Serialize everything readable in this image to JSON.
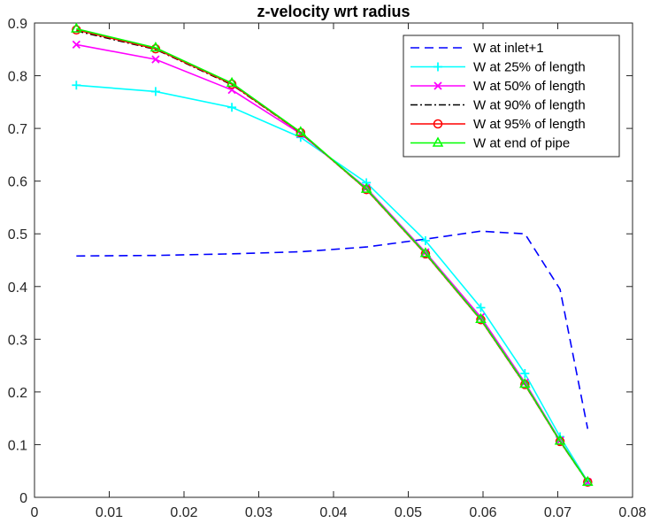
{
  "chart_data": {
    "type": "line",
    "title": "z-velocity wrt radius",
    "xlabel": "",
    "ylabel": "",
    "xlim": [
      0,
      0.08
    ],
    "ylim": [
      0,
      0.9
    ],
    "xticks": [
      0,
      0.01,
      0.02,
      0.03,
      0.04,
      0.05,
      0.06,
      0.07,
      0.08
    ],
    "xtick_labels": [
      "0",
      "0.01",
      "0.02",
      "0.03",
      "0.04",
      "0.05",
      "0.06",
      "0.07",
      "0.08"
    ],
    "yticks": [
      0,
      0.1,
      0.2,
      0.3,
      0.4,
      0.5,
      0.6,
      0.7,
      0.8,
      0.9
    ],
    "ytick_labels": [
      "0",
      "0.1",
      "0.2",
      "0.3",
      "0.4",
      "0.5",
      "0.6",
      "0.7",
      "0.8",
      "0.9"
    ],
    "grid": false,
    "legend_position": "top-right",
    "series": [
      {
        "name": "W at inlet+1",
        "color": "#0000ff",
        "line_style": "dashed",
        "marker": "none",
        "x": [
          0.0056,
          0.0162,
          0.0264,
          0.0356,
          0.0444,
          0.0523,
          0.0597,
          0.0656,
          0.0703,
          0.074
        ],
        "y": [
          0.458,
          0.459,
          0.462,
          0.466,
          0.475,
          0.49,
          0.505,
          0.5,
          0.395,
          0.13
        ]
      },
      {
        "name": "W at 25% of length",
        "color": "#00ffff",
        "line_style": "solid",
        "marker": "plus",
        "x": [
          0.0056,
          0.0162,
          0.0264,
          0.0356,
          0.0444,
          0.0523,
          0.0597,
          0.0656,
          0.0703,
          0.074
        ],
        "y": [
          0.782,
          0.77,
          0.74,
          0.683,
          0.597,
          0.487,
          0.36,
          0.235,
          0.115,
          0.03
        ]
      },
      {
        "name": "W at 50% of length",
        "color": "#ff00ff",
        "line_style": "solid",
        "marker": "x",
        "x": [
          0.0056,
          0.0162,
          0.0264,
          0.0356,
          0.0444,
          0.0523,
          0.0597,
          0.0656,
          0.0703,
          0.074
        ],
        "y": [
          0.859,
          0.831,
          0.773,
          0.69,
          0.587,
          0.465,
          0.342,
          0.218,
          0.108,
          0.029
        ]
      },
      {
        "name": "W at 90% of length",
        "color": "#000000",
        "line_style": "dashdot",
        "marker": "none",
        "x": [
          0.0056,
          0.0162,
          0.0264,
          0.0356,
          0.0444,
          0.0523,
          0.0597,
          0.0656,
          0.0703,
          0.074
        ],
        "y": [
          0.885,
          0.85,
          0.783,
          0.692,
          0.584,
          0.462,
          0.337,
          0.214,
          0.106,
          0.029
        ]
      },
      {
        "name": "W at 95% of length",
        "color": "#ff0000",
        "line_style": "solid",
        "marker": "circle",
        "x": [
          0.0056,
          0.0162,
          0.0264,
          0.0356,
          0.0444,
          0.0523,
          0.0597,
          0.0656,
          0.0703,
          0.074
        ],
        "y": [
          0.887,
          0.851,
          0.784,
          0.692,
          0.584,
          0.462,
          0.337,
          0.214,
          0.106,
          0.029
        ]
      },
      {
        "name": "W at end of pipe",
        "color": "#00ff00",
        "line_style": "solid",
        "marker": "triangle",
        "x": [
          0.0056,
          0.0162,
          0.0264,
          0.0356,
          0.0444,
          0.0523,
          0.0597,
          0.0656,
          0.0703,
          0.074
        ],
        "y": [
          0.889,
          0.853,
          0.786,
          0.693,
          0.585,
          0.463,
          0.338,
          0.215,
          0.107,
          0.029
        ]
      }
    ]
  }
}
